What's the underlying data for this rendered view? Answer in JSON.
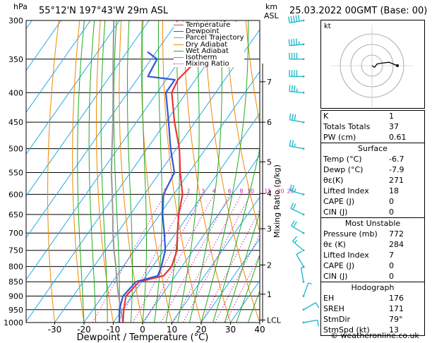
{
  "header": {
    "location": "55°12'N  197°43'W  29m  ASL",
    "datetime": "25.03.2022  00GMT  (Base: 00)",
    "left_unit": "hPa",
    "right_unit_top": "km",
    "right_unit_bottom": "ASL"
  },
  "legend": [
    {
      "label": "Temperature",
      "color": "#ee3333",
      "style": "solid"
    },
    {
      "label": "Dewpoint",
      "color": "#3355dd",
      "style": "solid"
    },
    {
      "label": "Parcel Trajectory",
      "color": "#999999",
      "style": "solid"
    },
    {
      "label": "Dry Adiabat",
      "color": "#ee8800",
      "style": "solid"
    },
    {
      "label": "Wet Adiabat",
      "color": "#22aa22",
      "style": "solid"
    },
    {
      "label": "Isotherm",
      "color": "#22aaee",
      "style": "solid"
    },
    {
      "label": "Mixing Ratio",
      "color": "#cc22aa",
      "style": "dotted"
    }
  ],
  "colors": {
    "temperature": "#ee3333",
    "dewpoint": "#3355dd",
    "parcel": "#999999",
    "dry_adiabat": "#ee8800",
    "wet_adiabat": "#22aa22",
    "isotherm": "#22aaee",
    "mixing_ratio": "#cc22aa",
    "wind_barb": "#22bbcc"
  },
  "chart_data": {
    "type": "skew-t",
    "xlabel": "Dewpoint / Temperature (°C)",
    "ylabel_right": "Mixing Ratio (g/kg)",
    "xticks": [
      -30,
      -20,
      -10,
      0,
      10,
      20,
      30,
      40
    ],
    "pressure_levels": [
      300,
      350,
      400,
      450,
      500,
      550,
      600,
      650,
      700,
      750,
      800,
      850,
      900,
      950,
      1000
    ],
    "km_ticks": [
      {
        "label": "7",
        "p": 383
      },
      {
        "label": "6",
        "p": 450
      },
      {
        "label": "5",
        "p": 527
      },
      {
        "label": "4",
        "p": 598
      },
      {
        "label": "3",
        "p": 688
      },
      {
        "label": "2",
        "p": 795
      },
      {
        "label": "1",
        "p": 893
      },
      {
        "label": "LCL",
        "p": 990
      }
    ],
    "mixing_ratio_labels": [
      "1",
      "2",
      "3",
      "4",
      "6",
      "8",
      "10",
      "15",
      "20",
      "25"
    ],
    "mixing_ratio_values": [
      1,
      2,
      3,
      4,
      6,
      8,
      10,
      15,
      20,
      25
    ],
    "temperature": {
      "p": [
        1000,
        950,
        900,
        850,
        830,
        800,
        750,
        700,
        650,
        600,
        550,
        500,
        450,
        400,
        380,
        350,
        300
      ],
      "t": [
        -6.7,
        -9.5,
        -12,
        -11,
        -4,
        -3.5,
        -5.5,
        -9.5,
        -13.5,
        -17,
        -23,
        -29,
        -37,
        -45,
        -46,
        -44,
        -44
      ]
    },
    "dewpoint": {
      "p": [
        1000,
        950,
        900,
        850,
        830,
        800,
        750,
        700,
        650,
        600,
        550,
        500,
        450,
        400,
        380,
        375,
        350,
        340
      ],
      "t": [
        -7.9,
        -11,
        -13,
        -12,
        -6,
        -7,
        -9.5,
        -14,
        -19,
        -23.5,
        -25,
        -32,
        -39,
        -47,
        -47,
        -57,
        -58,
        -63
      ]
    },
    "parcel": {
      "p": [
        1000,
        950,
        900,
        850,
        800,
        750,
        700,
        650,
        600,
        550,
        500,
        450,
        400,
        350,
        300
      ],
      "t": [
        -6.7,
        -10.5,
        -14.5,
        -18.5,
        -22.5,
        -27,
        -31.5,
        -36,
        -41,
        -46.5,
        -52,
        -58,
        -65,
        -73,
        -82
      ]
    },
    "winds": [
      {
        "p": 300,
        "dir": 260,
        "spd": 50
      },
      {
        "p": 330,
        "dir": 265,
        "spd": 45
      },
      {
        "p": 350,
        "dir": 270,
        "spd": 40
      },
      {
        "p": 375,
        "dir": 270,
        "spd": 40
      },
      {
        "p": 400,
        "dir": 275,
        "spd": 35
      },
      {
        "p": 450,
        "dir": 280,
        "spd": 30
      },
      {
        "p": 500,
        "dir": 280,
        "spd": 25
      },
      {
        "p": 600,
        "dir": 285,
        "spd": 25
      },
      {
        "p": 650,
        "dir": 295,
        "spd": 20
      },
      {
        "p": 700,
        "dir": 300,
        "spd": 20
      },
      {
        "p": 750,
        "dir": 310,
        "spd": 15
      },
      {
        "p": 800,
        "dir": 330,
        "spd": 10
      },
      {
        "p": 850,
        "dir": 350,
        "spd": 5
      },
      {
        "p": 900,
        "dir": 20,
        "spd": 5
      },
      {
        "p": 950,
        "dir": 60,
        "spd": 10
      },
      {
        "p": 1000,
        "dir": 80,
        "spd": 10
      }
    ]
  },
  "hodograph": {
    "label": "kt",
    "points": [
      [
        0,
        0
      ],
      [
        3,
        -2
      ],
      [
        6,
        2
      ],
      [
        12,
        3
      ],
      [
        20,
        4
      ],
      [
        25,
        2
      ],
      [
        30,
        0
      ]
    ]
  },
  "indices": [
    {
      "label": "K",
      "value": "1"
    },
    {
      "label": "Totals Totals",
      "value": "37"
    },
    {
      "label": "PW (cm)",
      "value": "0.61"
    }
  ],
  "surface": {
    "title": "Surface",
    "rows": [
      {
        "label": "Temp (°C)",
        "value": "-6.7"
      },
      {
        "label": "Dewp (°C)",
        "value": "-7.9"
      },
      {
        "label": "θε(K)",
        "value": "271"
      },
      {
        "label": "Lifted Index",
        "value": "18"
      },
      {
        "label": "CAPE (J)",
        "value": "0"
      },
      {
        "label": "CIN (J)",
        "value": "0"
      }
    ]
  },
  "most_unstable": {
    "title": "Most Unstable",
    "rows": [
      {
        "label": "Pressure (mb)",
        "value": "772"
      },
      {
        "label": "θε (K)",
        "value": "284"
      },
      {
        "label": "Lifted Index",
        "value": "7"
      },
      {
        "label": "CAPE (J)",
        "value": "0"
      },
      {
        "label": "CIN (J)",
        "value": "0"
      }
    ]
  },
  "hodograph_stats": {
    "title": "Hodograph",
    "rows": [
      {
        "label": "EH",
        "value": "176"
      },
      {
        "label": "SREH",
        "value": "171"
      },
      {
        "label": "StmDir",
        "value": "79°"
      },
      {
        "label": "StmSpd (kt)",
        "value": "13"
      }
    ]
  },
  "footer": {
    "copyright": "© weatheronline.co.uk"
  }
}
